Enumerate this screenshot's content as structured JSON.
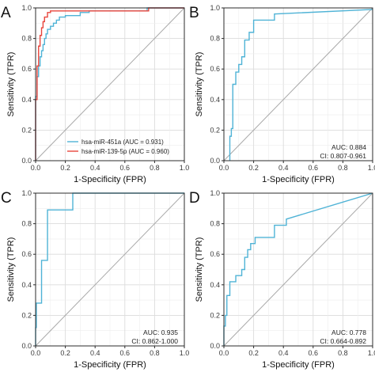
{
  "chart_data": [
    {
      "panel_label": "A",
      "type": "line",
      "xlabel": "1-Specificity (FPR)",
      "ylabel": "Sensitivity (TPR)",
      "xlim": [
        0,
        1
      ],
      "ylim": [
        0,
        1
      ],
      "xticks": [
        "0.0",
        "0.2",
        "0.4",
        "0.6",
        "0.8",
        "1.0"
      ],
      "yticks": [
        "0.0",
        "0.2",
        "0.4",
        "0.6",
        "0.8",
        "1.0"
      ],
      "grid": true,
      "diagonal_reference": true,
      "legend_position": "bottom-right",
      "series": [
        {
          "name": "hsa-miR-451a (AUC = 0.931)",
          "color": "#4fb3d6",
          "x": [
            0,
            0,
            0.01,
            0.01,
            0.02,
            0.02,
            0.03,
            0.03,
            0.04,
            0.04,
            0.05,
            0.05,
            0.06,
            0.06,
            0.07,
            0.07,
            0.08,
            0.08,
            0.1,
            0.1,
            0.12,
            0.12,
            0.14,
            0.14,
            0.16,
            0.16,
            0.2,
            0.2,
            0.3,
            0.3,
            0.36,
            0.36,
            0.75,
            0.75,
            1
          ],
          "y": [
            0,
            0.42,
            0.42,
            0.55,
            0.55,
            0.62,
            0.62,
            0.68,
            0.68,
            0.72,
            0.72,
            0.76,
            0.76,
            0.8,
            0.8,
            0.83,
            0.83,
            0.86,
            0.86,
            0.88,
            0.88,
            0.9,
            0.9,
            0.92,
            0.92,
            0.94,
            0.94,
            0.95,
            0.95,
            0.97,
            0.97,
            0.98,
            0.98,
            1.0,
            1.0
          ]
        },
        {
          "name": "hsa-miR-139-5p (AUC = 0.960)",
          "color": "#e8453c",
          "x": [
            0,
            0,
            0.01,
            0.01,
            0.02,
            0.02,
            0.03,
            0.03,
            0.04,
            0.04,
            0.05,
            0.05,
            0.06,
            0.06,
            0.08,
            0.08,
            0.1,
            0.1,
            0.76,
            0.76,
            1
          ],
          "y": [
            0,
            0.4,
            0.4,
            0.62,
            0.62,
            0.75,
            0.75,
            0.82,
            0.82,
            0.87,
            0.87,
            0.91,
            0.91,
            0.94,
            0.94,
            0.97,
            0.97,
            0.98,
            0.98,
            1.0,
            1.0
          ]
        }
      ]
    },
    {
      "panel_label": "B",
      "type": "line",
      "xlabel": "1-Specificity (FPR)",
      "ylabel": "Sensitivity (TPR)",
      "xlim": [
        0,
        1
      ],
      "ylim": [
        0,
        1
      ],
      "xticks": [
        "0.0",
        "0.2",
        "0.4",
        "0.6",
        "0.8",
        "1.0"
      ],
      "yticks": [
        "0.0",
        "0.2",
        "0.4",
        "0.6",
        "0.8",
        "1.0"
      ],
      "grid": true,
      "diagonal_reference": true,
      "annotations": [
        "AUC: 0.884",
        "CI: 0.807-0.961"
      ],
      "series": [
        {
          "color": "#4fb3d6",
          "x": [
            0.04,
            0.04,
            0.05,
            0.05,
            0.06,
            0.06,
            0.08,
            0.08,
            0.1,
            0.1,
            0.12,
            0.12,
            0.14,
            0.14,
            0.17,
            0.17,
            0.2,
            0.2,
            0.34,
            0.34,
            1
          ],
          "y": [
            0,
            0.16,
            0.16,
            0.21,
            0.21,
            0.5,
            0.5,
            0.58,
            0.58,
            0.63,
            0.63,
            0.68,
            0.68,
            0.79,
            0.79,
            0.84,
            0.84,
            0.92,
            0.92,
            0.96,
            0.99
          ]
        }
      ]
    },
    {
      "panel_label": "C",
      "type": "line",
      "xlabel": "1-Specificity (FPR)",
      "ylabel": "Sensitivity (TPR)",
      "xlim": [
        0,
        1
      ],
      "ylim": [
        0,
        1
      ],
      "xticks": [
        "0.0",
        "0.2",
        "0.4",
        "0.6",
        "0.8",
        "1.0"
      ],
      "yticks": [
        "0.0",
        "0.2",
        "0.4",
        "0.6",
        "0.8",
        "1.0"
      ],
      "grid": true,
      "diagonal_reference": true,
      "annotations": [
        "AUC: 0.935",
        "CI: 0.862-1.000"
      ],
      "series": [
        {
          "color": "#4fb3d6",
          "x": [
            0,
            0,
            0.005,
            0.005,
            0.04,
            0.04,
            0.08,
            0.08,
            0.25,
            0.25,
            1
          ],
          "y": [
            0,
            0.12,
            0.12,
            0.28,
            0.28,
            0.56,
            0.56,
            0.89,
            0.89,
            1.0,
            1.0
          ]
        }
      ]
    },
    {
      "panel_label": "D",
      "type": "line",
      "xlabel": "1-Specificity (FPR)",
      "ylabel": "Sensitivity (TPR)",
      "xlim": [
        0,
        1
      ],
      "ylim": [
        0,
        1
      ],
      "xticks": [
        "0.0",
        "0.2",
        "0.4",
        "0.6",
        "0.8",
        "1.0"
      ],
      "yticks": [
        "0.0",
        "0.2",
        "0.4",
        "0.6",
        "0.8",
        "1.0"
      ],
      "grid": true,
      "diagonal_reference": true,
      "annotations": [
        "AUC: 0.778",
        "CI: 0.664-0.892"
      ],
      "series": [
        {
          "color": "#4fb3d6",
          "x": [
            0,
            0,
            0.01,
            0.01,
            0.02,
            0.02,
            0.04,
            0.04,
            0.08,
            0.08,
            0.12,
            0.12,
            0.14,
            0.14,
            0.16,
            0.16,
            0.18,
            0.18,
            0.21,
            0.21,
            0.24,
            0.24,
            0.34,
            0.34,
            0.42,
            0.42,
            1
          ],
          "y": [
            0,
            0.13,
            0.13,
            0.2,
            0.2,
            0.33,
            0.33,
            0.42,
            0.42,
            0.46,
            0.46,
            0.5,
            0.5,
            0.58,
            0.58,
            0.63,
            0.63,
            0.67,
            0.67,
            0.71,
            0.71,
            0.71,
            0.71,
            0.79,
            0.79,
            0.83,
            1.0
          ]
        }
      ]
    }
  ]
}
